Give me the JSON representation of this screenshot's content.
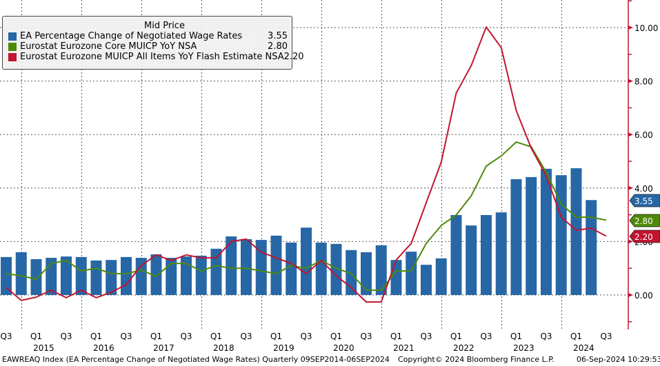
{
  "chart_data": {
    "type": "bar+line",
    "legend_title": "Mid Price",
    "legend_placement": "top-left",
    "categories": [
      "Q3 2014",
      "Q4 2014",
      "Q1 2015",
      "Q2 2015",
      "Q3 2015",
      "Q4 2015",
      "Q1 2016",
      "Q2 2016",
      "Q3 2016",
      "Q4 2016",
      "Q1 2017",
      "Q2 2017",
      "Q3 2017",
      "Q4 2017",
      "Q1 2018",
      "Q2 2018",
      "Q3 2018",
      "Q4 2018",
      "Q1 2019",
      "Q2 2019",
      "Q3 2019",
      "Q4 2019",
      "Q1 2020",
      "Q2 2020",
      "Q3 2020",
      "Q4 2020",
      "Q1 2021",
      "Q2 2021",
      "Q3 2021",
      "Q4 2021",
      "Q1 2022",
      "Q2 2022",
      "Q3 2022",
      "Q4 2022",
      "Q1 2023",
      "Q2 2023",
      "Q3 2023",
      "Q4 2023",
      "Q1 2024",
      "Q2 2024",
      "Q3 2024"
    ],
    "series": [
      {
        "name": "EA Percentage Change of Negotiated Wage Rates",
        "type": "bar",
        "color": "#2767a6",
        "last_value": "3.55",
        "values": [
          1.42,
          1.6,
          1.34,
          1.39,
          1.44,
          1.42,
          1.29,
          1.31,
          1.42,
          1.39,
          1.52,
          1.39,
          1.44,
          1.47,
          1.73,
          2.19,
          2.09,
          2.06,
          2.22,
          1.96,
          2.52,
          1.96,
          1.91,
          1.68,
          1.6,
          1.86,
          1.31,
          1.62,
          1.13,
          1.37,
          2.99,
          2.6,
          2.99,
          3.09,
          4.33,
          4.41,
          4.72,
          4.48,
          4.74,
          3.55
        ]
      },
      {
        "name": "Eurostat Eurozone Core MUICP YoY NSA",
        "type": "line",
        "color": "#4e8a0a",
        "last_value": "2.80",
        "values": [
          0.8,
          0.72,
          0.59,
          1.18,
          1.29,
          0.9,
          1.0,
          0.8,
          0.8,
          0.93,
          0.7,
          1.18,
          1.18,
          0.9,
          1.1,
          1.0,
          1.0,
          0.9,
          0.8,
          1.1,
          1.0,
          1.29,
          1.0,
          0.8,
          0.18,
          0.18,
          0.9,
          0.9,
          1.93,
          2.6,
          2.99,
          3.71,
          4.82,
          5.2,
          5.72,
          5.54,
          4.59,
          3.4,
          2.91,
          2.91,
          2.8
        ]
      },
      {
        "name": "Eurostat Eurozone MUICP All Items YoY Flash Estimate NSA",
        "type": "line",
        "color": "#c0142f",
        "last_value": "2.20",
        "values": [
          0.28,
          -0.2,
          -0.08,
          0.18,
          -0.1,
          0.18,
          -0.1,
          0.1,
          0.39,
          1.1,
          1.5,
          1.29,
          1.5,
          1.39,
          1.39,
          2.0,
          2.09,
          1.6,
          1.39,
          1.18,
          0.8,
          1.29,
          0.72,
          0.28,
          -0.26,
          -0.26,
          1.31,
          1.93,
          3.45,
          4.97,
          7.55,
          8.58,
          10.02,
          9.25,
          6.9,
          5.49,
          4.46,
          2.91,
          2.42,
          2.5,
          2.2
        ]
      }
    ],
    "y_axis": {
      "side": "right",
      "range": [
        -1.2,
        11.0
      ],
      "ticks": [
        "0.00",
        "2.00",
        "4.00",
        "6.00",
        "8.00",
        "10.00"
      ],
      "tick_values": [
        0,
        2,
        4,
        6,
        8,
        10
      ],
      "color": "#c0142f"
    },
    "x_axis": {
      "quarter_labels": [
        "Q3",
        "Q1",
        "Q3",
        "Q1",
        "Q3",
        "Q1",
        "Q3",
        "Q1",
        "Q3",
        "Q1",
        "Q3",
        "Q1",
        "Q3",
        "Q1",
        "Q3",
        "Q1",
        "Q3",
        "Q1",
        "Q3",
        "Q1",
        "Q3"
      ],
      "quarter_label_index": [
        0,
        2,
        4,
        6,
        8,
        10,
        12,
        14,
        16,
        18,
        20,
        22,
        24,
        26,
        28,
        30,
        32,
        34,
        36,
        38,
        40
      ],
      "years": [
        "2015",
        "2016",
        "2017",
        "2018",
        "2019",
        "2020",
        "2021",
        "2022",
        "2023",
        "2024"
      ]
    },
    "grid": true
  },
  "footer": {
    "index_desc": "EAWREAQ Index (EA Percentage Change of Negotiated Wage Rates)  Quarterly 09SEP2014-06SEP2024",
    "copyright": "Copyright© 2024 Bloomberg Finance L.P.",
    "timestamp": "06-Sep-2024 10:29:53"
  }
}
